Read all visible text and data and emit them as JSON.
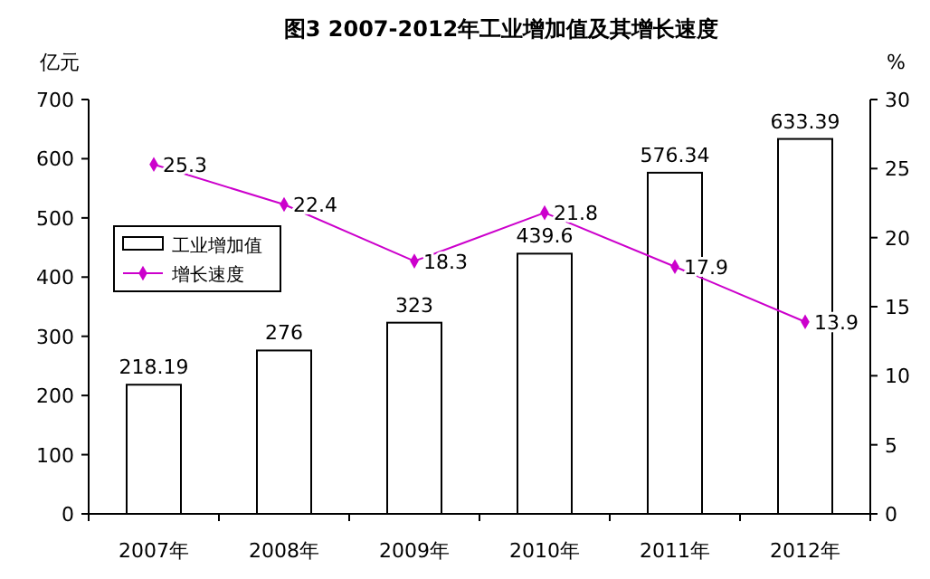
{
  "chart_data": {
    "type": "bar",
    "title": "图3 2007-2012年工业增加值及其增长速度",
    "ylabel": "亿元",
    "y2label": "%",
    "categories": [
      "2007年",
      "2008年",
      "2009年",
      "2010年",
      "2011年",
      "2012年"
    ],
    "series": [
      {
        "name": "工业增加值",
        "color": "#ffffff",
        "values": [
          218.19,
          276,
          323,
          439.6,
          576.34,
          633.39
        ]
      },
      {
        "name": "增长速度",
        "type": "line",
        "axis": "y2",
        "color": "#cc00cc",
        "values": [
          25.3,
          22.4,
          18.3,
          21.8,
          17.9,
          13.9
        ]
      }
    ],
    "ylim": [
      0,
      700
    ],
    "yticks": [
      0,
      100,
      200,
      300,
      400,
      500,
      600,
      700
    ],
    "y2lim": [
      0,
      30
    ],
    "y2ticks": [
      0,
      5,
      10,
      15,
      20,
      25,
      30
    ],
    "data_labels": true,
    "legend": "left",
    "marker": "diamond",
    "grid": false
  }
}
